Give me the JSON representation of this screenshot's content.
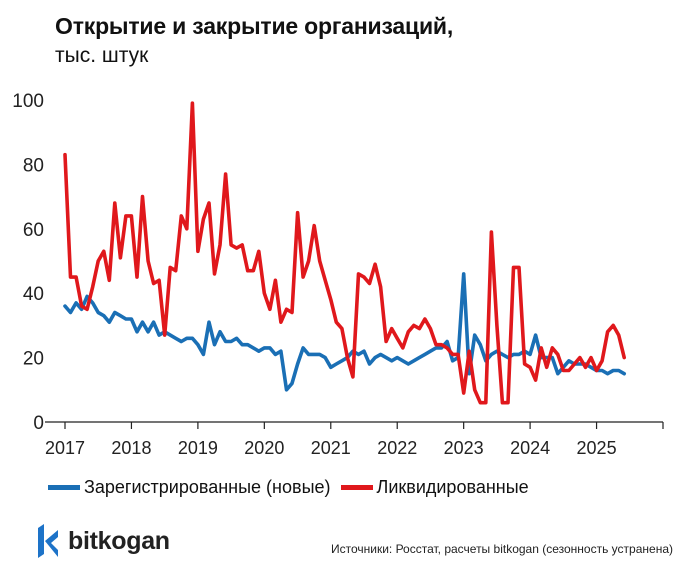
{
  "chart_data": {
    "type": "line",
    "title": "Открытие и закрытие организаций,",
    "subtitle": "тыс. штук",
    "xlabel": "",
    "ylabel": "",
    "ylim": [
      0,
      100
    ],
    "xlim": [
      2017,
      2026
    ],
    "y_ticks": [
      0,
      20,
      40,
      60,
      80,
      100
    ],
    "x_ticks": [
      2017,
      2018,
      2019,
      2020,
      2021,
      2022,
      2023,
      2024,
      2025
    ],
    "grid": false,
    "legend_position": "bottom",
    "series": [
      {
        "name": "Зарегистрированные (новые)",
        "color": "#1a6fb5",
        "values": [
          36,
          34,
          37,
          35,
          39,
          37,
          34,
          33,
          31,
          34,
          33,
          32,
          32,
          28,
          31,
          28,
          31,
          27,
          28,
          27,
          26,
          25,
          26,
          26,
          24,
          21,
          31,
          24,
          28,
          25,
          25,
          26,
          24,
          24,
          23,
          22,
          23,
          23,
          21,
          22,
          10,
          12,
          18,
          23,
          21,
          21,
          21,
          20,
          17,
          18,
          19,
          20,
          22,
          21,
          22,
          18,
          20,
          21,
          20,
          19,
          20,
          19,
          18,
          19,
          20,
          21,
          22,
          23,
          23,
          25,
          19,
          20,
          46,
          15,
          27,
          24,
          19,
          21,
          22,
          21,
          20,
          21,
          21,
          22,
          21,
          27,
          20,
          20,
          20,
          15,
          17,
          19,
          18,
          18,
          18,
          17,
          16,
          16,
          15,
          16,
          16,
          15
        ]
      },
      {
        "name": "Ликвидированные",
        "color": "#e0181c",
        "values": [
          83,
          45,
          45,
          36,
          35,
          42,
          50,
          53,
          44,
          68,
          51,
          64,
          64,
          45,
          70,
          50,
          43,
          44,
          27,
          48,
          47,
          64,
          60,
          99,
          53,
          63,
          68,
          46,
          55,
          77,
          55,
          54,
          55,
          47,
          47,
          53,
          40,
          35,
          44,
          31,
          35,
          34,
          65,
          45,
          50,
          61,
          50,
          44,
          38,
          31,
          29,
          20,
          14,
          46,
          45,
          43,
          49,
          42,
          25,
          29,
          26,
          23,
          28,
          30,
          29,
          32,
          29,
          24,
          24,
          23,
          21,
          21,
          9,
          22,
          10,
          6,
          6,
          59,
          30,
          6,
          6,
          48,
          48,
          18,
          17,
          13,
          23,
          17,
          23,
          21,
          16,
          16,
          18,
          20,
          17,
          20,
          16,
          19,
          28,
          30,
          27,
          20
        ]
      }
    ]
  },
  "legend": {
    "items": [
      "Зарегистрированные (новые)",
      "Ликвидированные"
    ]
  },
  "logo": {
    "text": "bitkogan"
  },
  "source": "Источники: Росстат, расчеты bitkogan (сезонность устранена)",
  "colors": {
    "blue": "#1a6fb5",
    "red": "#e0181c",
    "logo_blue": "#1d73c8"
  }
}
